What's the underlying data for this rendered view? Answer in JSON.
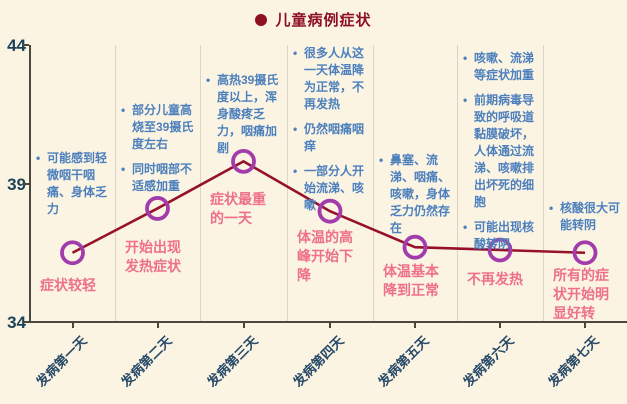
{
  "legend": {
    "label": "儿童病例症状",
    "marker_color": "#8E1023"
  },
  "colors": {
    "background": "#FBF4E3",
    "line": "#96122B",
    "marker": "#A23CAA",
    "note_text": "#4D80BD",
    "stage_text": "#EE7089",
    "axis_text": "#1C4257",
    "grid": "#DCD5C5"
  },
  "chart_data": {
    "type": "line",
    "title": "儿童病例症状",
    "categories": [
      "发病第一天",
      "发病第二天",
      "发病第三天",
      "发病第四天",
      "发病第五天",
      "发病第六天",
      "发病第七天"
    ],
    "values": [
      36.5,
      38.1,
      39.8,
      38.0,
      36.7,
      36.6,
      36.5
    ],
    "xlabel": "",
    "ylabel": "",
    "ylim": [
      34,
      44
    ],
    "y_ticks": [
      44,
      39,
      34
    ],
    "grid": "vertical-gridlines-only",
    "legend_position": "top-center",
    "marker": "open-circle",
    "line_color": "#96122B",
    "marker_color": "#A23CAA"
  },
  "days": [
    {
      "label": "发病第一天",
      "value": 36.5,
      "notes": [
        "可能感到轻微咽干咽痛、身体乏力"
      ],
      "stage": "症状较轻"
    },
    {
      "label": "发病第二天",
      "value": 38.1,
      "notes": [
        "部分儿童高烧至39摄氏度左右",
        "同时咽部不适感加重"
      ],
      "stage": "开始出现发热症状"
    },
    {
      "label": "发病第三天",
      "value": 39.8,
      "notes": [
        "高热39摄氏度以上，浑身酸疼乏力，咽痛加剧"
      ],
      "stage": "症状最重的一天"
    },
    {
      "label": "发病第四天",
      "value": 38.0,
      "notes": [
        "很多人从这一天体温降为正常，不再发热",
        "仍然咽痛咽痒",
        "一部分人开始流涕、咳嗽"
      ],
      "stage": "体温的高峰开始下降"
    },
    {
      "label": "发病第五天",
      "value": 36.7,
      "notes": [
        "鼻塞、流涕、咽痛、咳嗽，身体乏力仍然存在"
      ],
      "stage": "体温基本降到正常"
    },
    {
      "label": "发病第六天",
      "value": 36.6,
      "notes": [
        "咳嗽、流涕等症状加重",
        "前期病毒导致的呼吸道黏膜破坏，人体通过流涕、咳嗽排出坏死的细胞",
        "可能出现核酸转阴"
      ],
      "stage": "不再发热"
    },
    {
      "label": "发病第七天",
      "value": 36.5,
      "notes": [
        "核酸很大可能转阴"
      ],
      "stage": "所有的症状开始明显好转"
    }
  ]
}
